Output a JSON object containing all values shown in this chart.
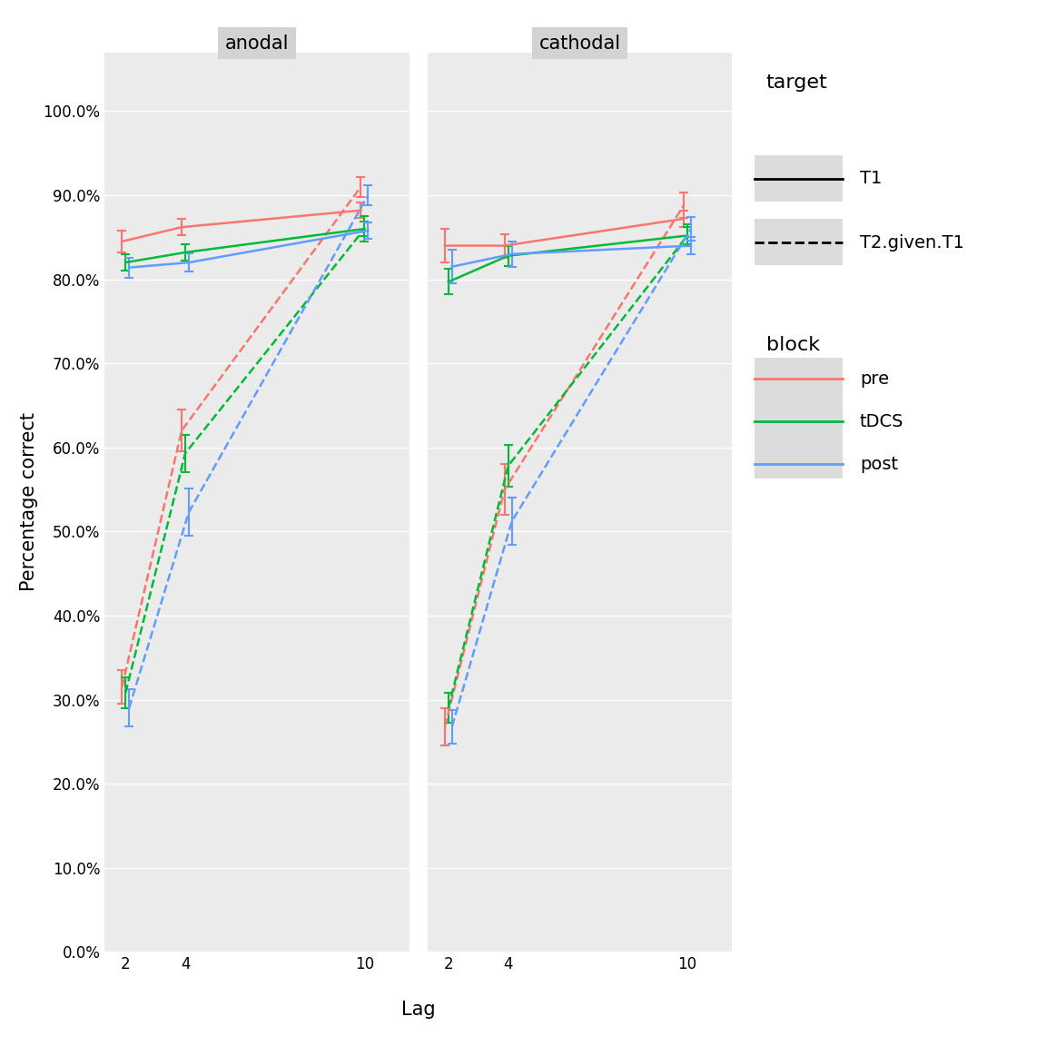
{
  "panels": [
    "anodal",
    "cathodal"
  ],
  "lags": [
    2,
    4,
    10
  ],
  "colors": {
    "pre": "#F8766D",
    "tDCS": "#00BA38",
    "post": "#619CFF"
  },
  "anodal": {
    "T1": {
      "pre": {
        "y": [
          0.845,
          0.862,
          0.882
        ],
        "err": [
          0.013,
          0.01,
          0.009
        ]
      },
      "tDCS": {
        "y": [
          0.82,
          0.832,
          0.86
        ],
        "err": [
          0.01,
          0.01,
          0.009
        ]
      },
      "post": {
        "y": [
          0.814,
          0.82,
          0.858
        ],
        "err": [
          0.012,
          0.011,
          0.01
        ]
      }
    },
    "T2gT1": {
      "pre": {
        "y": [
          0.315,
          0.62,
          0.91
        ],
        "err": [
          0.02,
          0.025,
          0.012
        ]
      },
      "tDCS": {
        "y": [
          0.308,
          0.593,
          0.86
        ],
        "err": [
          0.018,
          0.022,
          0.015
        ]
      },
      "post": {
        "y": [
          0.29,
          0.523,
          0.9
        ],
        "err": [
          0.022,
          0.028,
          0.012
        ]
      }
    }
  },
  "cathodal": {
    "T1": {
      "pre": {
        "y": [
          0.84,
          0.84,
          0.872
        ],
        "err": [
          0.02,
          0.014,
          0.01
        ]
      },
      "tDCS": {
        "y": [
          0.797,
          0.828,
          0.852
        ],
        "err": [
          0.015,
          0.012,
          0.01
        ]
      },
      "post": {
        "y": [
          0.815,
          0.83,
          0.84
        ],
        "err": [
          0.02,
          0.015,
          0.01
        ]
      }
    },
    "T2gT1": {
      "pre": {
        "y": [
          0.268,
          0.55,
          0.888
        ],
        "err": [
          0.022,
          0.03,
          0.015
        ]
      },
      "tDCS": {
        "y": [
          0.29,
          0.578,
          0.852
        ],
        "err": [
          0.018,
          0.025,
          0.013
        ]
      },
      "post": {
        "y": [
          0.268,
          0.512,
          0.86
        ],
        "err": [
          0.02,
          0.028,
          0.014
        ]
      }
    }
  },
  "ylim": [
    0.0,
    1.07
  ],
  "yticks": [
    0.0,
    0.1,
    0.2,
    0.3,
    0.4,
    0.5,
    0.6,
    0.7,
    0.8,
    0.9,
    1.0
  ],
  "xlabel": "Lag",
  "ylabel": "Percentage correct",
  "plot_bg": "#EBEBEB",
  "fig_bg": "#FFFFFF",
  "panel_header_color": "#D3D3D3",
  "grid_color": "#FFFFFF",
  "legend_key_bg": "#DCDCDC",
  "title_fontsize": 15,
  "axis_fontsize": 15,
  "tick_fontsize": 12,
  "legend_title_fontsize": 16,
  "legend_item_fontsize": 14
}
